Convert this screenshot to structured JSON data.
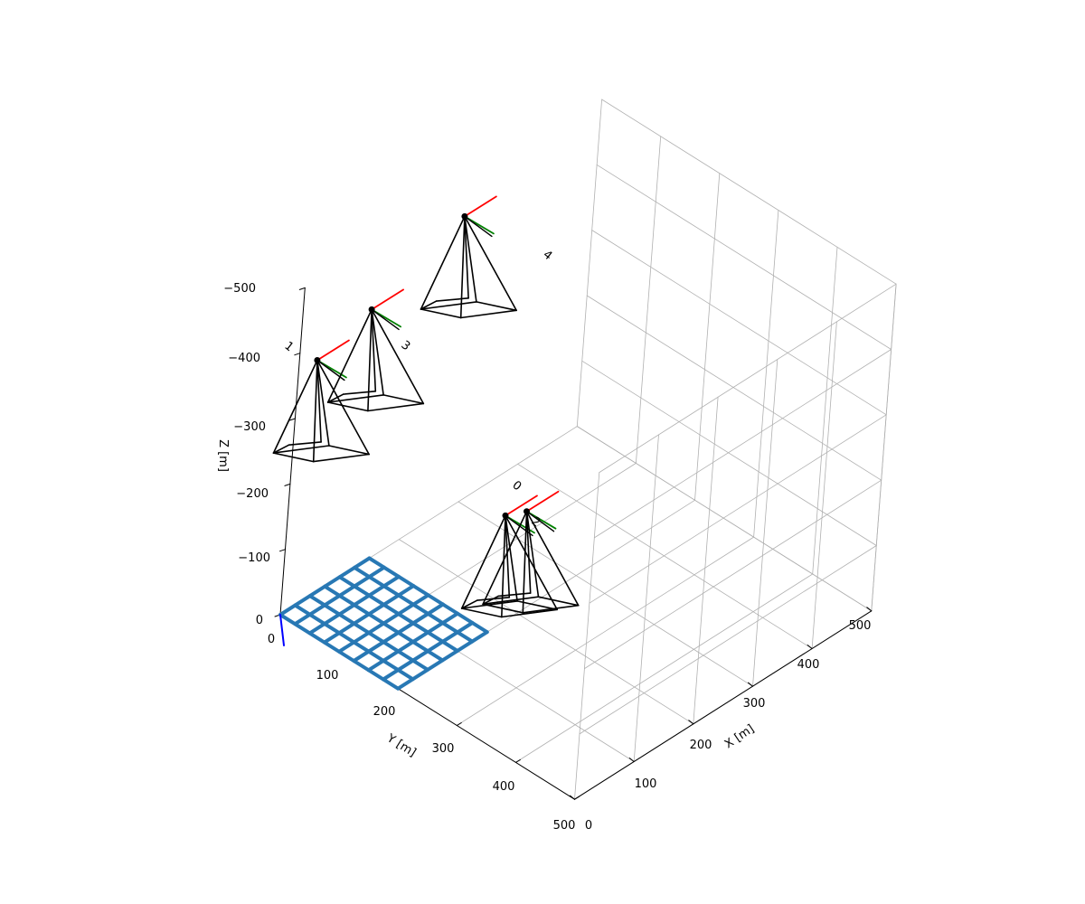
{
  "chart_data": {
    "type": "3d-wireframe",
    "axes": {
      "x": {
        "label": "X [m]",
        "ticks": [
          "0",
          "100",
          "200",
          "300",
          "400",
          "500"
        ],
        "range": [
          0,
          500
        ]
      },
      "y": {
        "label": "Y [m]",
        "ticks": [
          "0",
          "100",
          "200",
          "300",
          "400",
          "500"
        ],
        "range": [
          0,
          500
        ]
      },
      "z": {
        "label": "Z [m]",
        "ticks": [
          "0",
          "−100",
          "−200",
          "−300",
          "−400",
          "−500"
        ],
        "range": [
          0,
          -500
        ]
      },
      "grid": true
    },
    "checkerboard": {
      "color": "#2878b4",
      "x_range": [
        0,
        150
      ],
      "y_range": [
        0,
        200
      ],
      "cells_x": 6,
      "cells_y": 8
    },
    "cameras": [
      {
        "id": "0",
        "center": [
          95,
          266,
          -247
        ],
        "frustum_color": "#000000"
      },
      {
        "id": "1",
        "center": [
          15,
          15,
          -389
        ],
        "frustum_color": "#000000"
      },
      {
        "id": "2",
        "center": [
          133,
          265,
          -231
        ],
        "frustum_color": "#000000"
      },
      {
        "id": "3",
        "center": [
          110,
          10,
          -409
        ],
        "frustum_color": "#000000"
      },
      {
        "id": "4",
        "center": [
          250,
          21,
          -477
        ],
        "frustum_color": "#000000"
      }
    ],
    "axis_colors": {
      "x": "#ff0000",
      "y": "#008000",
      "z": "#0000ff"
    }
  }
}
